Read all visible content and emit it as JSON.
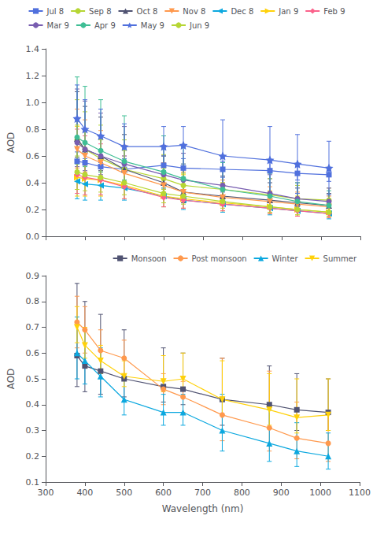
{
  "chart_data": [
    {
      "type": "line",
      "ylabel": "AOD",
      "x": [
        380,
        400,
        440,
        500,
        600,
        650,
        750,
        870,
        940,
        1020
      ],
      "xlim": [
        300,
        1100
      ],
      "xticks": [
        300,
        400,
        500,
        600,
        700,
        800,
        900,
        1000,
        1100
      ],
      "ylim": [
        0.0,
        1.4
      ],
      "yticks": [
        {
          "value": 0,
          "label": "0.0"
        },
        0.2,
        0.4,
        0.6,
        0.8,
        {
          "value": 1,
          "label": "1.0"
        },
        1.2,
        1.4
      ],
      "tick_labels": "y",
      "grid": false,
      "legend": "upper center",
      "series": [
        {
          "name": "Jul 8",
          "marker": "square",
          "values": [
            0.56,
            0.55,
            0.52,
            0.5,
            0.53,
            0.51,
            0.5,
            0.49,
            0.47,
            0.46
          ],
          "yerr_lo": [
            0.1,
            0.1,
            0.09,
            0.08,
            0.07,
            0.07,
            0.06,
            0.06,
            0.05,
            0.05
          ],
          "yerr_hi": [
            0.1,
            0.1,
            0.09,
            0.08,
            0.07,
            0.07,
            0.06,
            0.06,
            0.05,
            0.05
          ]
        },
        {
          "name": "Sep 8",
          "marker": "circle",
          "values": [
            0.72,
            0.65,
            0.58,
            0.5,
            0.43,
            0.38,
            0.35,
            0.31,
            0.28,
            0.27
          ],
          "yerr_lo": [
            0.12,
            0.11,
            0.1,
            0.09,
            0.08,
            0.07,
            0.07,
            0.06,
            0.06,
            0.05
          ],
          "yerr_hi": [
            0.3,
            0.28,
            0.25,
            0.22,
            0.18,
            0.16,
            0.14,
            0.12,
            0.1,
            0.09
          ]
        },
        {
          "name": "Oct 8",
          "marker": "triangle_up",
          "values": [
            0.73,
            0.65,
            0.6,
            0.5,
            0.4,
            0.33,
            0.3,
            0.27,
            0.25,
            0.23
          ],
          "yerr_lo": [
            0.14,
            0.12,
            0.11,
            0.1,
            0.09,
            0.08,
            0.07,
            0.06,
            0.05,
            0.05
          ],
          "yerr_hi": [
            0.35,
            0.32,
            0.29,
            0.26,
            0.2,
            0.18,
            0.15,
            0.13,
            0.11,
            0.09
          ]
        },
        {
          "name": "Nov 8",
          "marker": "triangle_down",
          "values": [
            0.65,
            0.6,
            0.55,
            0.47,
            0.38,
            0.33,
            0.29,
            0.26,
            0.24,
            0.22
          ],
          "yerr_lo": [
            0.14,
            0.12,
            0.11,
            0.1,
            0.08,
            0.07,
            0.06,
            0.05,
            0.05,
            0.04
          ],
          "yerr_hi": [
            0.3,
            0.27,
            0.24,
            0.21,
            0.17,
            0.15,
            0.13,
            0.11,
            0.09,
            0.08
          ]
        },
        {
          "name": "Dec 8",
          "marker": "triangle_left",
          "values": [
            0.41,
            0.39,
            0.38,
            0.36,
            0.3,
            0.27,
            0.24,
            0.21,
            0.19,
            0.17
          ],
          "yerr_lo": [
            0.13,
            0.12,
            0.11,
            0.09,
            0.08,
            0.07,
            0.06,
            0.05,
            0.04,
            0.04
          ],
          "yerr_hi": [
            0.32,
            0.3,
            0.27,
            0.24,
            0.19,
            0.17,
            0.14,
            0.12,
            0.1,
            0.08
          ]
        },
        {
          "name": "Jan 9",
          "marker": "triangle_right",
          "values": [
            0.44,
            0.43,
            0.42,
            0.38,
            0.3,
            0.28,
            0.25,
            0.22,
            0.2,
            0.18
          ],
          "yerr_lo": [
            0.14,
            0.13,
            0.12,
            0.1,
            0.08,
            0.07,
            0.06,
            0.05,
            0.04,
            0.04
          ],
          "yerr_hi": [
            0.38,
            0.35,
            0.31,
            0.27,
            0.21,
            0.18,
            0.15,
            0.12,
            0.1,
            0.08
          ]
        },
        {
          "name": "Feb 9",
          "marker": "diamond",
          "values": [
            0.46,
            0.44,
            0.42,
            0.37,
            0.29,
            0.27,
            0.24,
            0.21,
            0.19,
            0.17
          ],
          "yerr_lo": [
            0.14,
            0.13,
            0.11,
            0.09,
            0.07,
            0.06,
            0.05,
            0.04,
            0.04,
            0.03
          ],
          "yerr_hi": [
            0.34,
            0.31,
            0.27,
            0.23,
            0.18,
            0.16,
            0.13,
            0.1,
            0.09,
            0.07
          ]
        },
        {
          "name": "Mar 9",
          "marker": "circle",
          "values": [
            0.7,
            0.65,
            0.6,
            0.54,
            0.46,
            0.42,
            0.38,
            0.32,
            0.28,
            0.26
          ],
          "yerr_lo": [
            0.18,
            0.16,
            0.14,
            0.12,
            0.1,
            0.09,
            0.08,
            0.07,
            0.06,
            0.05
          ],
          "yerr_hi": [
            0.4,
            0.36,
            0.32,
            0.28,
            0.22,
            0.2,
            0.17,
            0.14,
            0.12,
            0.1
          ]
        },
        {
          "name": "Apr 9",
          "marker": "circle",
          "values": [
            0.74,
            0.7,
            0.64,
            0.56,
            0.48,
            0.43,
            0.35,
            0.3,
            0.26,
            0.23
          ],
          "yerr_lo": [
            0.2,
            0.18,
            0.16,
            0.14,
            0.12,
            0.1,
            0.08,
            0.07,
            0.06,
            0.05
          ],
          "yerr_hi": [
            0.45,
            0.42,
            0.38,
            0.34,
            0.27,
            0.24,
            0.2,
            0.17,
            0.14,
            0.11
          ]
        },
        {
          "name": "May 9",
          "marker": "star",
          "values": [
            0.88,
            0.8,
            0.75,
            0.67,
            0.67,
            0.68,
            0.6,
            0.57,
            0.54,
            0.51
          ],
          "yerr_lo": [
            0.25,
            0.22,
            0.2,
            0.17,
            0.15,
            0.14,
            0.27,
            0.25,
            0.22,
            0.2
          ],
          "yerr_hi": [
            0.25,
            0.22,
            0.2,
            0.17,
            0.15,
            0.14,
            0.27,
            0.25,
            0.22,
            0.2
          ]
        },
        {
          "name": "Jun 9",
          "marker": "circle",
          "values": [
            0.48,
            0.46,
            0.44,
            0.4,
            0.32,
            0.3,
            0.26,
            0.22,
            0.2,
            0.18
          ],
          "yerr_lo": [
            0.13,
            0.12,
            0.11,
            0.09,
            0.07,
            0.06,
            0.05,
            0.04,
            0.04,
            0.03
          ],
          "yerr_hi": [
            0.35,
            0.32,
            0.28,
            0.24,
            0.19,
            0.17,
            0.14,
            0.11,
            0.09,
            0.07
          ]
        }
      ]
    },
    {
      "type": "line",
      "xlabel": "Wavelength (nm)",
      "ylabel": "AOD",
      "x": [
        380,
        400,
        440,
        500,
        600,
        650,
        750,
        870,
        940,
        1020
      ],
      "xlim": [
        300,
        1100
      ],
      "xticks": [
        300,
        400,
        500,
        600,
        700,
        800,
        900,
        1000,
        1100
      ],
      "ylim": [
        0.1,
        0.9
      ],
      "yticks": [
        0.1,
        0.2,
        0.3,
        0.4,
        0.5,
        0.6,
        0.7,
        0.8,
        0.9
      ],
      "grid": false,
      "legend": "upper right",
      "series": [
        {
          "name": "Monsoon",
          "marker": "square",
          "values": [
            0.59,
            0.55,
            0.53,
            0.5,
            0.47,
            0.46,
            0.42,
            0.4,
            0.38,
            0.37
          ],
          "yerr_lo": [
            0.12,
            0.1,
            0.09,
            0.07,
            0.06,
            0.06,
            0.1,
            0.09,
            0.08,
            0.07
          ],
          "yerr_hi": [
            0.28,
            0.25,
            0.22,
            0.19,
            0.15,
            0.14,
            0.16,
            0.15,
            0.14,
            0.13
          ]
        },
        {
          "name": "Post monsoon",
          "marker": "circle",
          "values": [
            0.72,
            0.69,
            0.61,
            0.58,
            0.46,
            0.43,
            0.36,
            0.31,
            0.27,
            0.25
          ],
          "yerr_lo": [
            0.1,
            0.09,
            0.08,
            0.07,
            0.06,
            0.06,
            0.1,
            0.09,
            0.08,
            0.07
          ],
          "yerr_hi": [
            0.1,
            0.09,
            0.08,
            0.07,
            0.06,
            0.06,
            0.22,
            0.22,
            0.14,
            0.12
          ]
        },
        {
          "name": "Winter",
          "marker": "triangle_up",
          "values": [
            0.6,
            0.57,
            0.51,
            0.42,
            0.37,
            0.37,
            0.3,
            0.25,
            0.22,
            0.2
          ],
          "yerr_lo": [
            0.1,
            0.09,
            0.08,
            0.06,
            0.05,
            0.05,
            0.08,
            0.07,
            0.06,
            0.05
          ],
          "yerr_hi": [
            0.14,
            0.12,
            0.11,
            0.09,
            0.07,
            0.07,
            0.14,
            0.13,
            0.11,
            0.09
          ]
        },
        {
          "name": "Summer",
          "marker": "triangle_down",
          "values": [
            0.7,
            0.63,
            0.57,
            0.51,
            0.49,
            0.5,
            0.42,
            0.38,
            0.35,
            0.36
          ],
          "yerr_lo": [
            0.06,
            0.05,
            0.05,
            0.04,
            0.04,
            0.04,
            0.06,
            0.06,
            0.06,
            0.06
          ],
          "yerr_hi": [
            0.08,
            0.07,
            0.06,
            0.06,
            0.1,
            0.1,
            0.15,
            0.14,
            0.15,
            0.14
          ]
        }
      ]
    }
  ]
}
